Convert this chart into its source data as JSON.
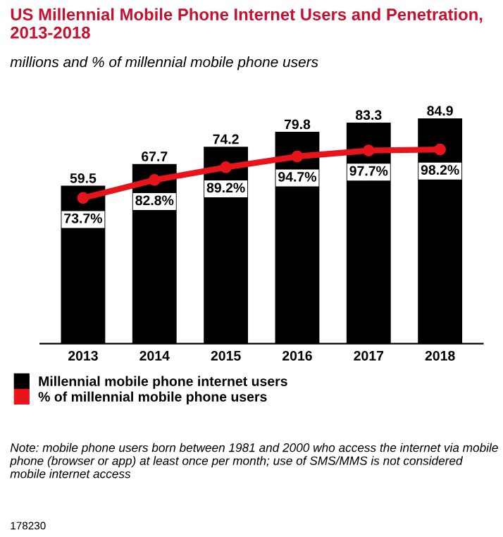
{
  "chart_data": {
    "type": "bar",
    "title": "US Millennial Mobile Phone Internet Users and Penetration, 2013-2018",
    "subtitle": "millions and % of millennial mobile phone users",
    "categories": [
      "2013",
      "2014",
      "2015",
      "2016",
      "2017",
      "2018"
    ],
    "series": [
      {
        "name": "Millennial mobile phone internet users",
        "color": "#000000",
        "values": [
          59.5,
          67.7,
          74.2,
          79.8,
          83.3,
          84.9
        ],
        "value_labels": [
          "59.5",
          "67.7",
          "74.2",
          "79.8",
          "83.3",
          "84.9"
        ]
      },
      {
        "name": "% of millennial mobile phone users",
        "type": "line",
        "axis": "y2",
        "color": "#e8141c",
        "marker": "circle",
        "values": [
          73.7,
          82.8,
          89.2,
          94.7,
          97.7,
          98.2
        ],
        "value_labels": [
          "73.7%",
          "82.8%",
          "89.2%",
          "94.7%",
          "97.7%",
          "98.2%"
        ]
      }
    ],
    "tick_labels": "x",
    "grid": false,
    "legend": "bottom",
    "annotations": [
      "Note: mobile phone users born between 1981 and 2000 who access the internet via mobile phone (browser or app) at least once per month; use of SMS/MMS is not considered mobile internet access",
      "178230"
    ]
  }
}
